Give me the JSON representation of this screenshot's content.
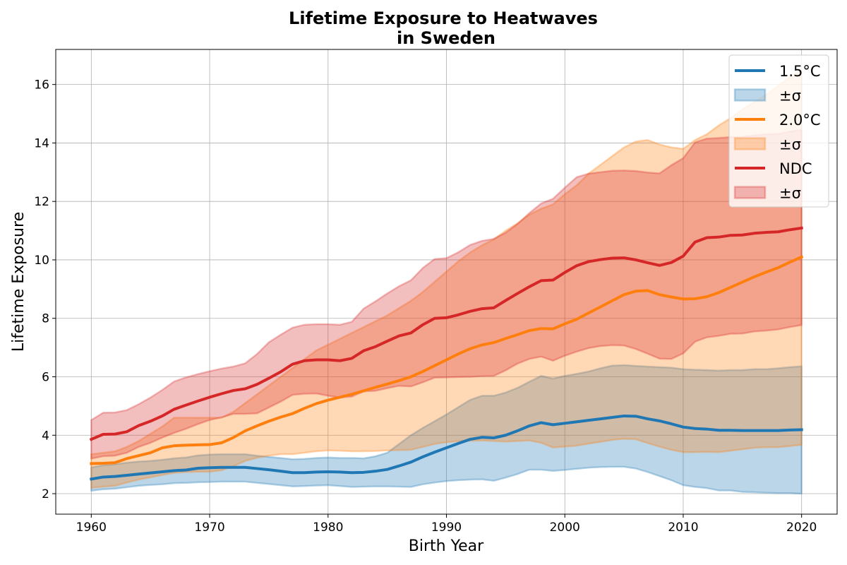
{
  "chart_data": {
    "type": "line",
    "title": "Lifetime Exposure to Heatwaves",
    "subtitle": "in Sweden",
    "xlabel": "Birth Year",
    "ylabel": "Lifetime Exposure",
    "xlim": [
      1957,
      2023
    ],
    "ylim": [
      1.3,
      17.2
    ],
    "x_ticks": [
      1960,
      1970,
      1980,
      1990,
      2000,
      2010,
      2020
    ],
    "y_ticks": [
      2,
      4,
      6,
      8,
      10,
      12,
      14,
      16
    ],
    "grid": true,
    "legend_position": "top-right",
    "legend_entries": [
      "1.5°C",
      "±σ",
      "2.0°C",
      "±σ",
      "NDC",
      "±σ"
    ],
    "x": [
      1960,
      1961,
      1962,
      1963,
      1964,
      1965,
      1966,
      1967,
      1968,
      1969,
      1970,
      1971,
      1972,
      1973,
      1974,
      1975,
      1976,
      1977,
      1978,
      1979,
      1980,
      1981,
      1982,
      1983,
      1984,
      1985,
      1986,
      1987,
      1988,
      1989,
      1990,
      1991,
      1992,
      1993,
      1994,
      1995,
      1996,
      1997,
      1998,
      1999,
      2000,
      2001,
      2002,
      2003,
      2004,
      2005,
      2006,
      2007,
      2008,
      2009,
      2010,
      2011,
      2012,
      2013,
      2014,
      2015,
      2016,
      2017,
      2018,
      2019,
      2020
    ],
    "series": [
      {
        "name": "1.5°C",
        "band_name": "±σ",
        "color": "#1f77b4",
        "values": [
          2.5,
          2.57,
          2.59,
          2.63,
          2.67,
          2.71,
          2.75,
          2.79,
          2.81,
          2.87,
          2.89,
          2.9,
          2.9,
          2.9,
          2.86,
          2.82,
          2.77,
          2.72,
          2.72,
          2.74,
          2.75,
          2.74,
          2.72,
          2.73,
          2.77,
          2.83,
          2.95,
          3.08,
          3.26,
          3.42,
          3.57,
          3.72,
          3.86,
          3.93,
          3.91,
          4.0,
          4.15,
          4.32,
          4.43,
          4.36,
          4.41,
          4.46,
          4.51,
          4.56,
          4.61,
          4.66,
          4.65,
          4.56,
          4.49,
          4.39,
          4.28,
          4.23,
          4.21,
          4.17,
          4.17,
          4.16,
          4.16,
          4.16,
          4.16,
          4.18,
          4.19
        ],
        "lower": [
          2.1,
          2.15,
          2.17,
          2.22,
          2.27,
          2.3,
          2.32,
          2.36,
          2.37,
          2.39,
          2.4,
          2.41,
          2.41,
          2.41,
          2.37,
          2.33,
          2.29,
          2.25,
          2.26,
          2.28,
          2.29,
          2.26,
          2.23,
          2.24,
          2.25,
          2.25,
          2.24,
          2.23,
          2.32,
          2.38,
          2.43,
          2.46,
          2.48,
          2.49,
          2.44,
          2.55,
          2.67,
          2.82,
          2.82,
          2.78,
          2.81,
          2.85,
          2.89,
          2.91,
          2.92,
          2.92,
          2.86,
          2.74,
          2.6,
          2.46,
          2.29,
          2.23,
          2.19,
          2.11,
          2.11,
          2.06,
          2.05,
          2.03,
          2.02,
          2.02,
          2.0
        ],
        "upper": [
          2.9,
          2.97,
          3.01,
          3.06,
          3.1,
          3.12,
          3.16,
          3.21,
          3.24,
          3.31,
          3.34,
          3.35,
          3.35,
          3.35,
          3.3,
          3.26,
          3.22,
          3.18,
          3.19,
          3.22,
          3.24,
          3.22,
          3.22,
          3.21,
          3.28,
          3.4,
          3.7,
          4.0,
          4.25,
          4.48,
          4.71,
          4.96,
          5.21,
          5.35,
          5.35,
          5.46,
          5.62,
          5.83,
          6.03,
          5.94,
          6.03,
          6.1,
          6.18,
          6.29,
          6.38,
          6.4,
          6.37,
          6.35,
          6.33,
          6.31,
          6.26,
          6.24,
          6.23,
          6.21,
          6.23,
          6.23,
          6.26,
          6.26,
          6.29,
          6.33,
          6.36
        ]
      },
      {
        "name": "2.0°C",
        "band_name": "±σ",
        "color": "#ff7f0e",
        "values": [
          3.03,
          3.04,
          3.06,
          3.2,
          3.3,
          3.4,
          3.57,
          3.64,
          3.66,
          3.67,
          3.68,
          3.74,
          3.92,
          4.15,
          4.32,
          4.48,
          4.62,
          4.74,
          4.92,
          5.08,
          5.2,
          5.3,
          5.4,
          5.52,
          5.64,
          5.75,
          5.87,
          6.0,
          6.18,
          6.38,
          6.58,
          6.78,
          6.96,
          7.09,
          7.17,
          7.31,
          7.44,
          7.58,
          7.65,
          7.64,
          7.81,
          7.97,
          8.18,
          8.39,
          8.6,
          8.81,
          8.93,
          8.95,
          8.81,
          8.73,
          8.66,
          8.67,
          8.74,
          8.88,
          9.06,
          9.24,
          9.42,
          9.58,
          9.73,
          9.92,
          10.1
        ],
        "lower": [
          2.2,
          2.24,
          2.27,
          2.38,
          2.48,
          2.56,
          2.64,
          2.71,
          2.74,
          2.75,
          2.75,
          2.8,
          2.94,
          3.12,
          3.23,
          3.3,
          3.35,
          3.35,
          3.4,
          3.45,
          3.48,
          3.47,
          3.45,
          3.45,
          3.46,
          3.48,
          3.49,
          3.5,
          3.6,
          3.7,
          3.76,
          3.8,
          3.81,
          3.82,
          3.8,
          3.78,
          3.8,
          3.82,
          3.74,
          3.58,
          3.61,
          3.64,
          3.71,
          3.77,
          3.84,
          3.88,
          3.86,
          3.73,
          3.61,
          3.5,
          3.42,
          3.42,
          3.43,
          3.42,
          3.47,
          3.52,
          3.57,
          3.59,
          3.59,
          3.63,
          3.67
        ],
        "upper": [
          3.35,
          3.4,
          3.45,
          3.6,
          3.8,
          4.05,
          4.3,
          4.6,
          4.6,
          4.6,
          4.6,
          4.6,
          4.8,
          5.1,
          5.4,
          5.7,
          6.0,
          6.3,
          6.6,
          6.9,
          7.1,
          7.3,
          7.5,
          7.7,
          7.9,
          8.1,
          8.35,
          8.6,
          8.9,
          9.25,
          9.6,
          9.95,
          10.25,
          10.5,
          10.7,
          11.0,
          11.25,
          11.55,
          11.75,
          11.9,
          12.25,
          12.55,
          12.95,
          13.25,
          13.55,
          13.85,
          14.05,
          14.1,
          13.95,
          13.85,
          13.8,
          14.1,
          14.3,
          14.6,
          14.85,
          15.15,
          15.4,
          15.65,
          15.95,
          16.25,
          16.5
        ]
      },
      {
        "name": "NDC",
        "band_name": "±σ",
        "color": "#d62728",
        "values": [
          3.86,
          4.03,
          4.04,
          4.12,
          4.33,
          4.48,
          4.66,
          4.89,
          5.03,
          5.17,
          5.3,
          5.42,
          5.53,
          5.59,
          5.74,
          5.95,
          6.17,
          6.43,
          6.55,
          6.58,
          6.58,
          6.55,
          6.63,
          6.89,
          7.03,
          7.22,
          7.4,
          7.5,
          7.78,
          8.0,
          8.02,
          8.12,
          8.24,
          8.33,
          8.36,
          8.61,
          8.85,
          9.08,
          9.29,
          9.31,
          9.57,
          9.8,
          9.94,
          10.01,
          10.06,
          10.07,
          10.0,
          9.9,
          9.81,
          9.91,
          10.13,
          10.61,
          10.76,
          10.78,
          10.84,
          10.85,
          10.91,
          10.94,
          10.96,
          11.03,
          11.09
        ],
        "lower": [
          3.2,
          3.28,
          3.3,
          3.4,
          3.6,
          3.74,
          3.92,
          4.08,
          4.22,
          4.38,
          4.52,
          4.61,
          4.73,
          4.73,
          4.75,
          4.95,
          5.15,
          5.38,
          5.42,
          5.43,
          5.35,
          5.29,
          5.32,
          5.5,
          5.52,
          5.61,
          5.69,
          5.67,
          5.81,
          5.97,
          5.98,
          5.99,
          6.0,
          6.02,
          6.03,
          6.22,
          6.45,
          6.61,
          6.69,
          6.55,
          6.72,
          6.86,
          6.98,
          7.05,
          7.08,
          7.07,
          6.95,
          6.79,
          6.62,
          6.61,
          6.8,
          7.2,
          7.35,
          7.4,
          7.47,
          7.48,
          7.55,
          7.58,
          7.62,
          7.7,
          7.77
        ],
        "upper": [
          4.52,
          4.77,
          4.78,
          4.86,
          5.06,
          5.29,
          5.55,
          5.84,
          5.98,
          6.09,
          6.19,
          6.28,
          6.35,
          6.46,
          6.78,
          7.18,
          7.44,
          7.68,
          7.78,
          7.8,
          7.8,
          7.78,
          7.88,
          8.33,
          8.58,
          8.85,
          9.1,
          9.3,
          9.72,
          10.03,
          10.06,
          10.26,
          10.51,
          10.65,
          10.72,
          10.93,
          11.23,
          11.6,
          11.93,
          12.09,
          12.47,
          12.83,
          12.95,
          13.0,
          13.05,
          13.06,
          13.04,
          12.99,
          12.96,
          13.24,
          13.48,
          14.02,
          14.15,
          14.17,
          14.2,
          14.21,
          14.26,
          14.3,
          14.31,
          14.39,
          14.45
        ]
      }
    ]
  }
}
